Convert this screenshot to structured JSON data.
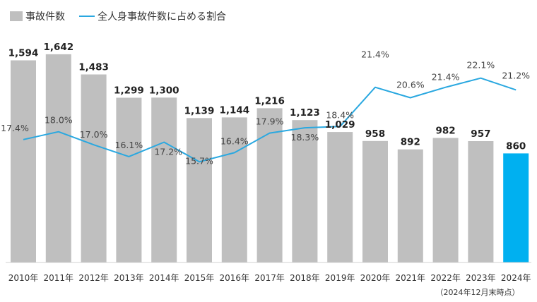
{
  "chart_data": {
    "type": "bar",
    "categories": [
      "2010年",
      "2011年",
      "2012年",
      "2013年",
      "2014年",
      "2015年",
      "2016年",
      "2017年",
      "2018年",
      "2019年",
      "2020年",
      "2021年",
      "2022年",
      "2023年",
      "2024年"
    ],
    "series": [
      {
        "name": "事故件数",
        "type": "bar",
        "values": [
          1594,
          1642,
          1483,
          1299,
          1300,
          1139,
          1144,
          1216,
          1123,
          1029,
          958,
          892,
          982,
          957,
          860
        ],
        "labels": [
          "1,594",
          "1,642",
          "1,483",
          "1,299",
          "1,300",
          "1,139",
          "1,144",
          "1,216",
          "1,123",
          "1,029",
          "958",
          "892",
          "982",
          "957",
          "860"
        ],
        "color": "#bfbfbf",
        "highlight_color": "#00b0f0",
        "highlight_index": 14
      },
      {
        "name": "全人身事故件数に占める割合",
        "type": "line",
        "values": [
          17.4,
          18.0,
          17.0,
          16.1,
          17.2,
          15.7,
          16.4,
          17.9,
          18.3,
          18.4,
          21.4,
          20.6,
          21.4,
          22.1,
          21.2
        ],
        "labels": [
          "17.4%",
          "18.0%",
          "17.0%",
          "16.1%",
          "17.2%",
          "15.7%",
          "16.4%",
          "17.9%",
          "18.3%",
          "18.4%",
          "21.4%",
          "20.6%",
          "21.4%",
          "22.1%",
          "21.2%"
        ],
        "color": "#2aa8e0"
      }
    ],
    "note": "（2024年12月末時点）",
    "bar_ylim": [
      0,
      1700
    ],
    "line_ylim": [
      8,
      25
    ],
    "grid": false,
    "legend_position": "top-left"
  }
}
